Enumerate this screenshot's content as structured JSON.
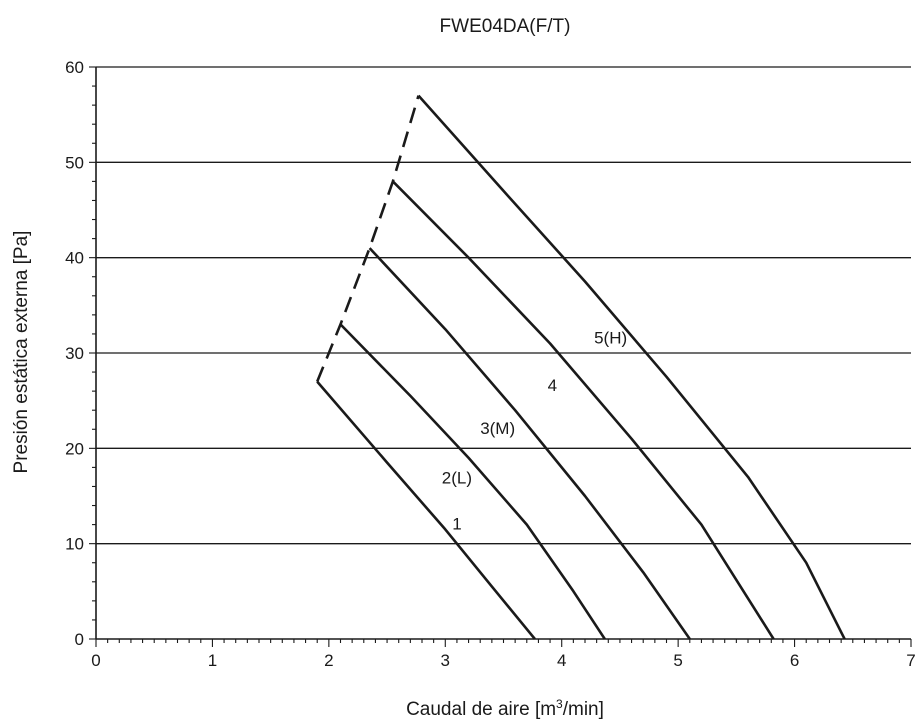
{
  "chart_data": {
    "type": "line",
    "title": "FWE04DA(F/T)",
    "xlabel": "Caudal de aire [m",
    "xlabel_sup": "3",
    "xlabel_tail": "/min]",
    "ylabel": "Presión estática externa [Pa]",
    "xlim": [
      0,
      7
    ],
    "ylim": [
      0,
      60
    ],
    "x_ticks": [
      "0",
      "1",
      "2",
      "3",
      "4",
      "5",
      "6",
      "7"
    ],
    "y_ticks": [
      "0",
      "10",
      "20",
      "30",
      "40",
      "50",
      "60"
    ],
    "grid": "horizontal",
    "series": [
      {
        "name": "1",
        "label_at": [
          3.1,
          11.5
        ],
        "points": [
          [
            1.9,
            27
          ],
          [
            2.5,
            18.5
          ],
          [
            3.0,
            11.5
          ],
          [
            3.4,
            5.5
          ],
          [
            3.77,
            0
          ]
        ]
      },
      {
        "name": "2(L)",
        "label_at": [
          3.1,
          16.3
        ],
        "points": [
          [
            2.1,
            33
          ],
          [
            2.7,
            25.5
          ],
          [
            3.2,
            19
          ],
          [
            3.7,
            12
          ],
          [
            4.1,
            5
          ],
          [
            4.37,
            0
          ]
        ]
      },
      {
        "name": "3(M)",
        "label_at": [
          3.45,
          21.5
        ],
        "points": [
          [
            2.35,
            41
          ],
          [
            3.0,
            32.5
          ],
          [
            3.6,
            24
          ],
          [
            4.2,
            15
          ],
          [
            4.7,
            7
          ],
          [
            5.1,
            0
          ]
        ]
      },
      {
        "name": "4",
        "label_at": [
          3.92,
          26.0
        ],
        "points": [
          [
            2.55,
            48
          ],
          [
            3.2,
            40
          ],
          [
            3.9,
            31
          ],
          [
            4.6,
            21
          ],
          [
            5.2,
            12
          ],
          [
            5.82,
            0
          ]
        ]
      },
      {
        "name": "5(H)",
        "label_at": [
          4.42,
          31.0
        ],
        "points": [
          [
            2.77,
            57
          ],
          [
            3.5,
            47
          ],
          [
            4.2,
            37.5
          ],
          [
            4.9,
            27.5
          ],
          [
            5.6,
            17
          ],
          [
            6.1,
            8
          ],
          [
            6.43,
            0
          ]
        ]
      }
    ],
    "limit_line": {
      "style": "dashed",
      "points": [
        [
          1.9,
          27
        ],
        [
          2.1,
          33
        ],
        [
          2.35,
          41
        ],
        [
          2.55,
          48
        ],
        [
          2.77,
          57
        ]
      ]
    }
  }
}
